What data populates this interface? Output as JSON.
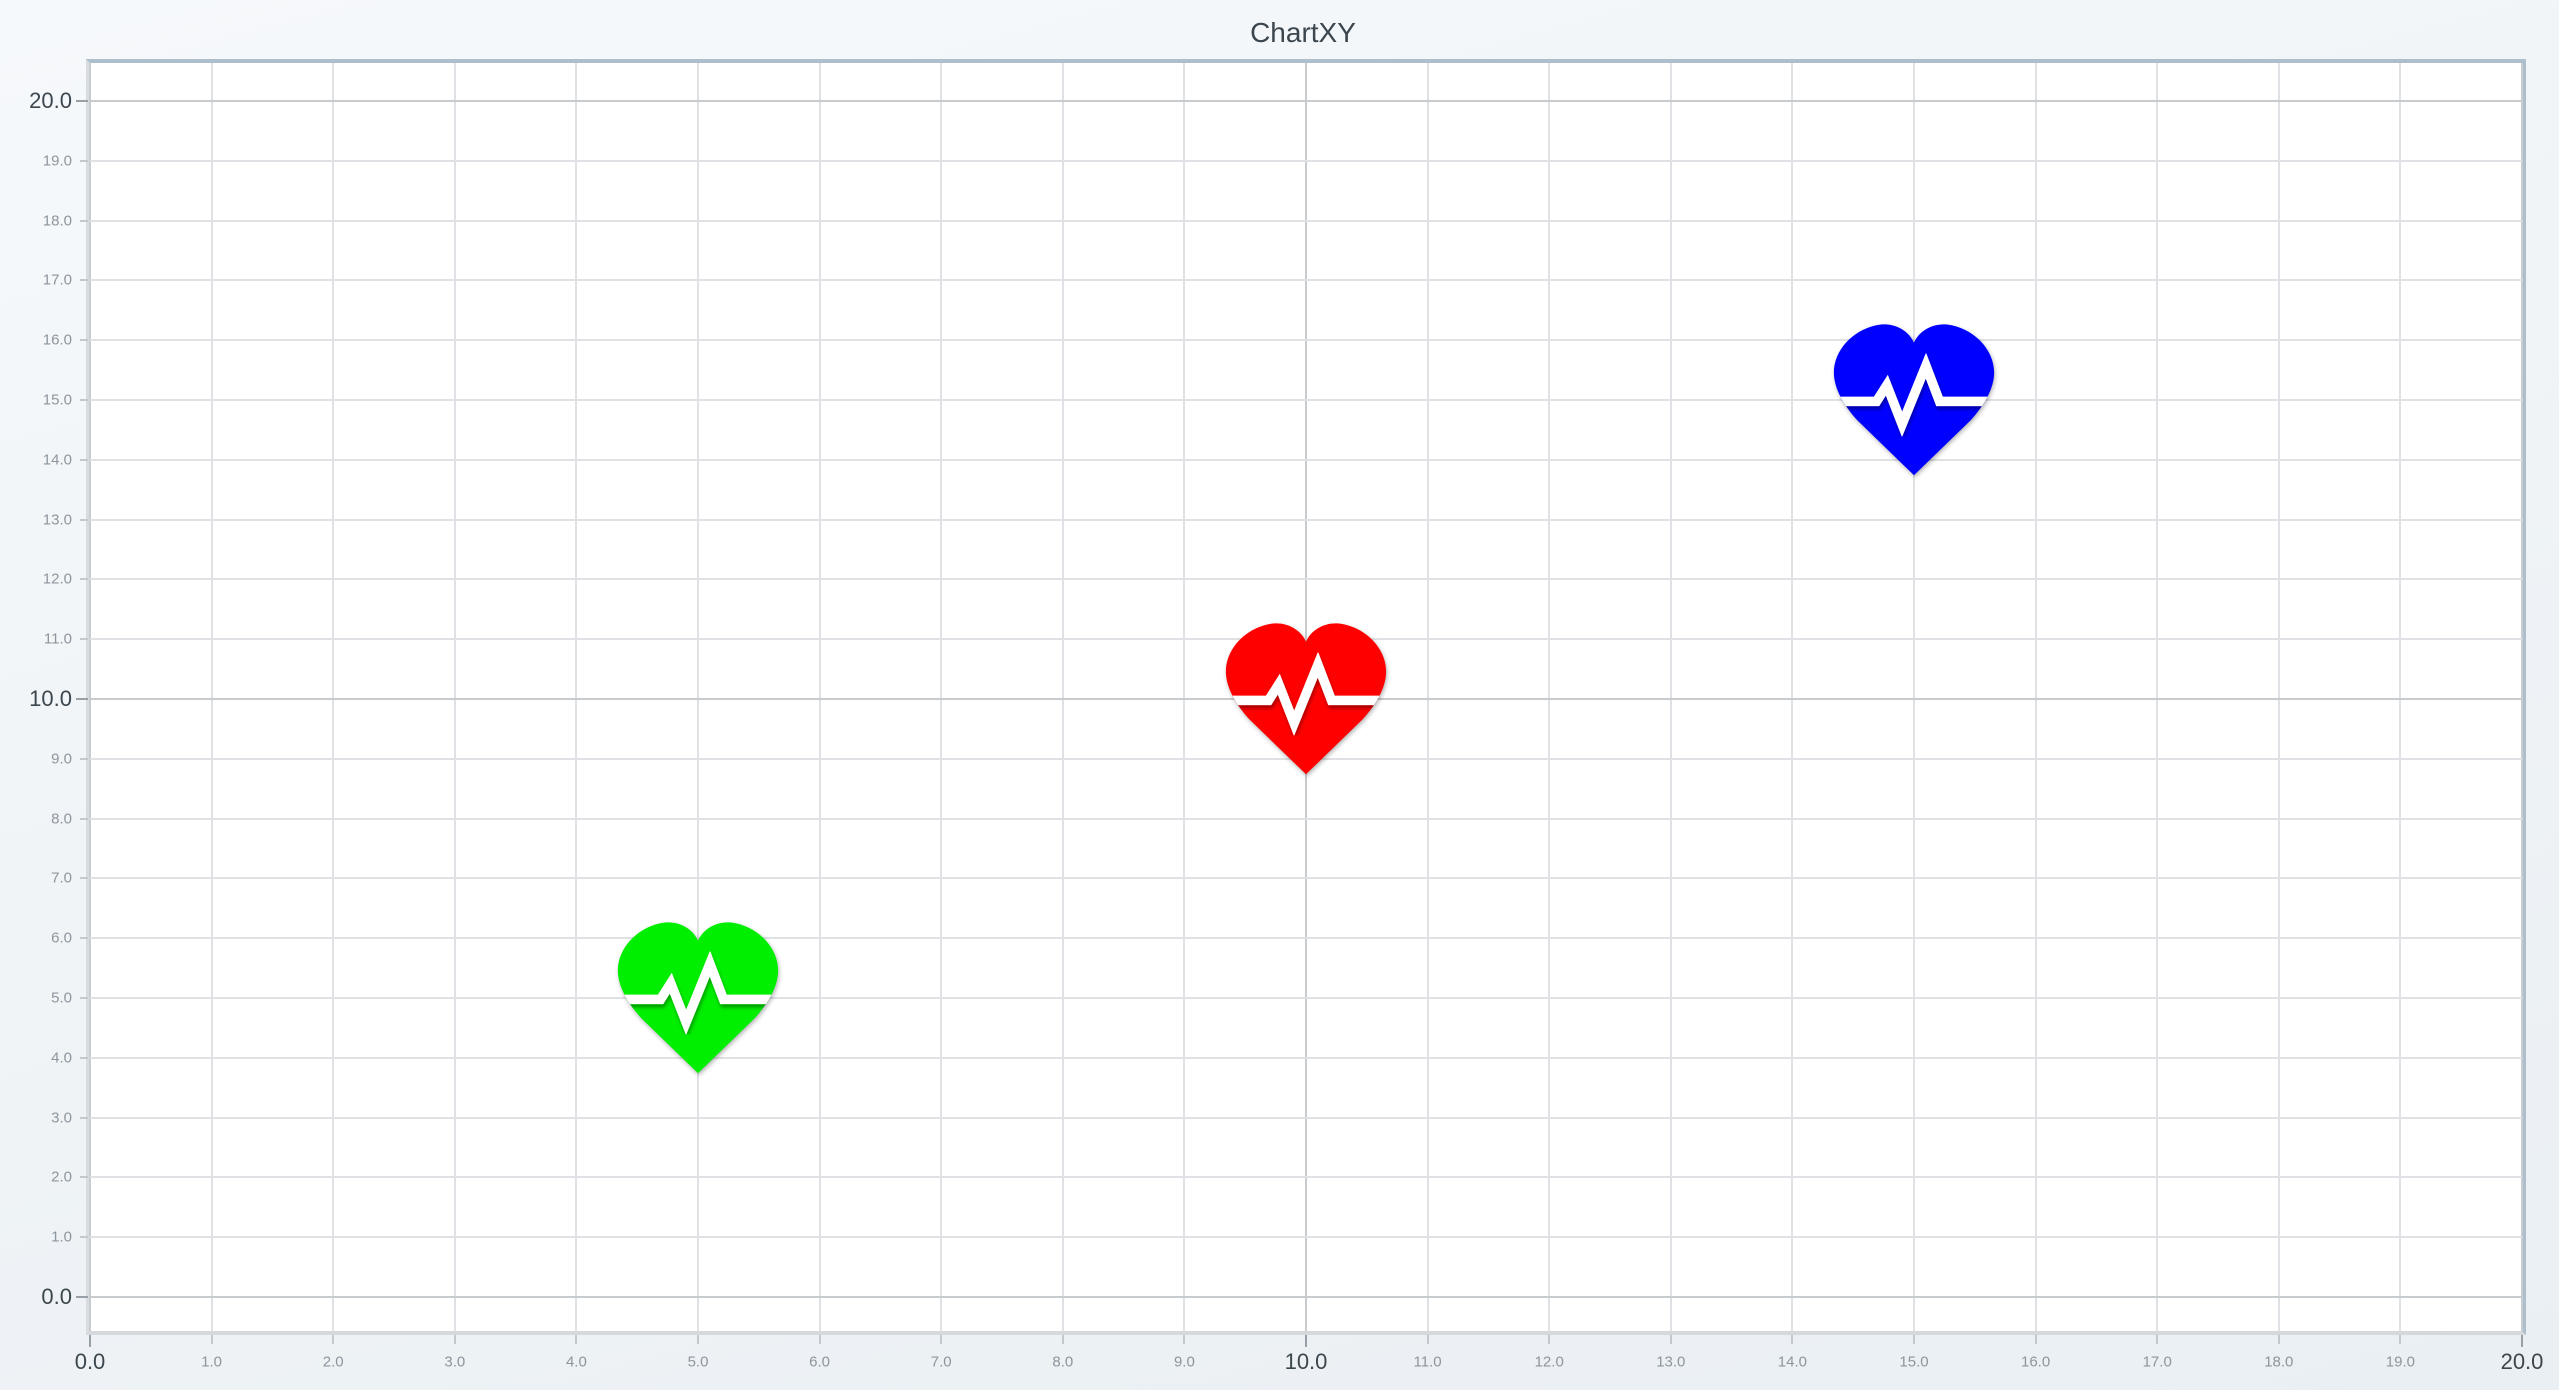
{
  "title": "ChartXY",
  "chart_data": {
    "type": "scatter",
    "title": "ChartXY",
    "xlabel": "",
    "ylabel": "",
    "xlim": [
      0,
      20
    ],
    "ylim": [
      0,
      20
    ],
    "grid": true,
    "legend": "none",
    "marker": "heart-pulse-icon",
    "points": [
      {
        "x": 5,
        "y": 5,
        "color": "#00ee00",
        "name": "green-heart"
      },
      {
        "x": 10,
        "y": 10,
        "color": "#ff0000",
        "name": "red-heart"
      },
      {
        "x": 15,
        "y": 15,
        "color": "#0000ff",
        "name": "blue-heart"
      }
    ],
    "x_ticks": [
      "0.0",
      "1.0",
      "2.0",
      "3.0",
      "4.0",
      "5.0",
      "6.0",
      "7.0",
      "8.0",
      "9.0",
      "10.0",
      "11.0",
      "12.0",
      "13.0",
      "14.0",
      "15.0",
      "16.0",
      "17.0",
      "18.0",
      "19.0",
      "20.0"
    ],
    "y_ticks": [
      "0.0",
      "1.0",
      "2.0",
      "3.0",
      "4.0",
      "5.0",
      "6.0",
      "7.0",
      "8.0",
      "9.0",
      "10.0",
      "11.0",
      "12.0",
      "13.0",
      "14.0",
      "15.0",
      "16.0",
      "17.0",
      "18.0",
      "19.0",
      "20.0"
    ],
    "major_tick_indices": [
      0,
      10,
      20
    ]
  },
  "colors": {
    "background_top": "#f6f9fb",
    "background_bottom": "#eaeff3",
    "plot_background": "#ffffff",
    "border_top_right": "#adbfcc",
    "border_left_bottom": "#d9dcdf",
    "grid_minor": "#dfe1e4",
    "grid_major": "#c9ccce",
    "label_major": "#3c464e",
    "label_minor": "#8d959d"
  }
}
